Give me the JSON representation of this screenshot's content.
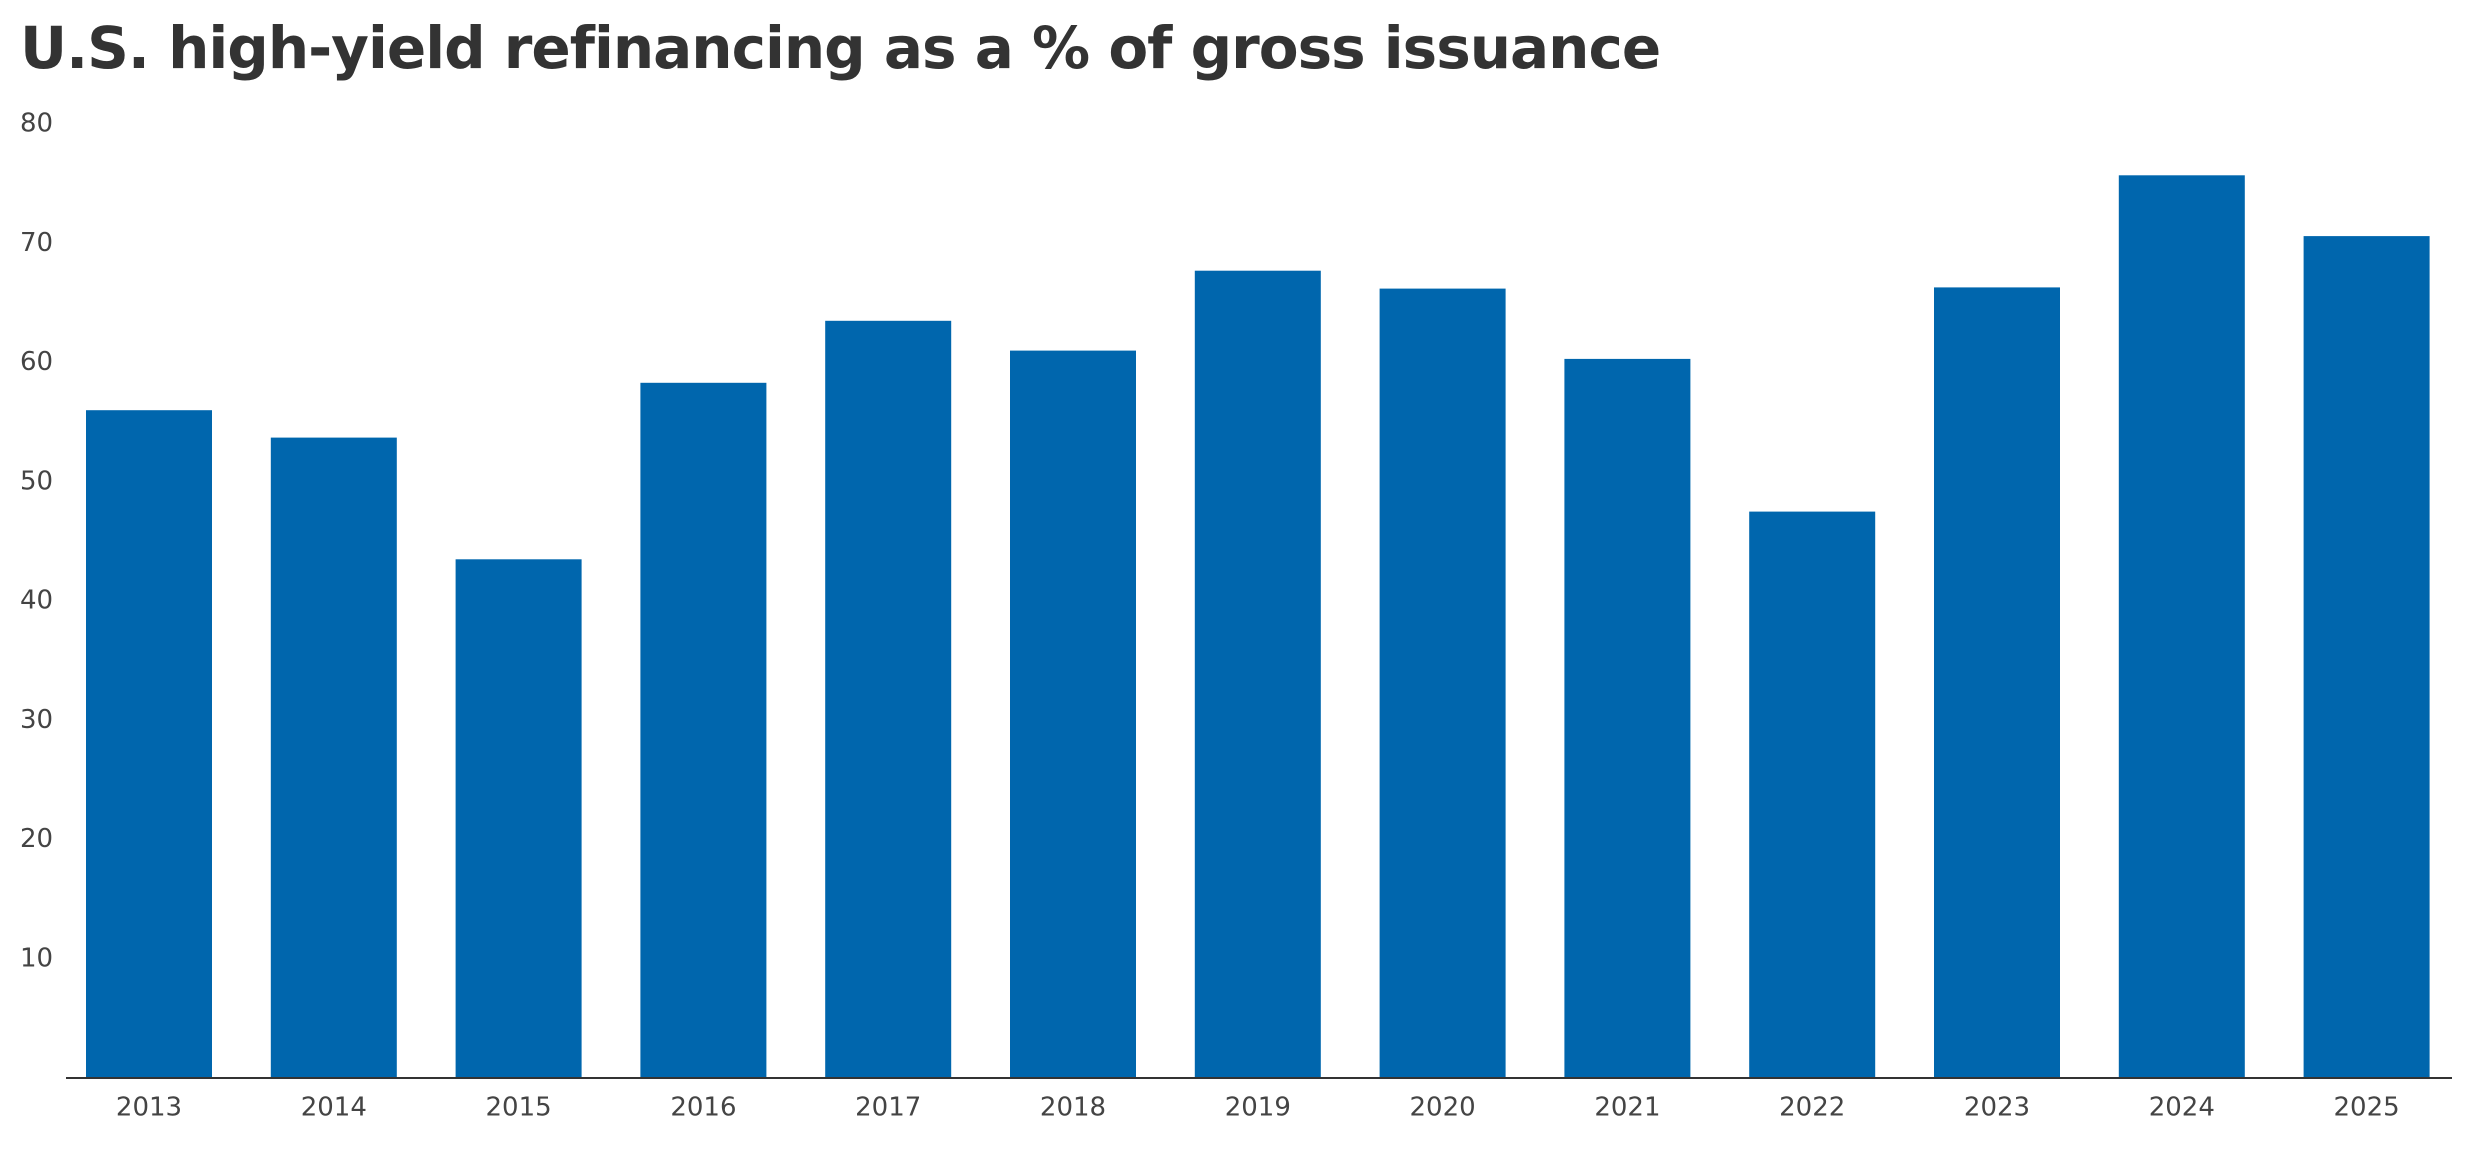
{
  "chart_data": {
    "type": "bar",
    "title": "U.S. high-yield refinancing as a % of gross issuance",
    "xlabel": "",
    "ylabel": "",
    "categories": [
      "2013",
      "2014",
      "2015",
      "2016",
      "2017",
      "2018",
      "2019",
      "2020",
      "2021",
      "2022",
      "2023",
      "2024",
      "2025"
    ],
    "values": [
      56.0,
      53.7,
      43.5,
      58.3,
      63.5,
      61.0,
      67.7,
      66.2,
      60.3,
      47.5,
      66.3,
      75.7,
      70.6
    ],
    "ylim": [
      0,
      80
    ],
    "yticks": [
      10,
      20,
      30,
      40,
      50,
      60,
      70,
      80
    ],
    "grid": false,
    "legend": "none",
    "bar_color": "#0066ad",
    "axis_color": "#333333",
    "title_color": "#333333",
    "tick_color": "#444444"
  }
}
